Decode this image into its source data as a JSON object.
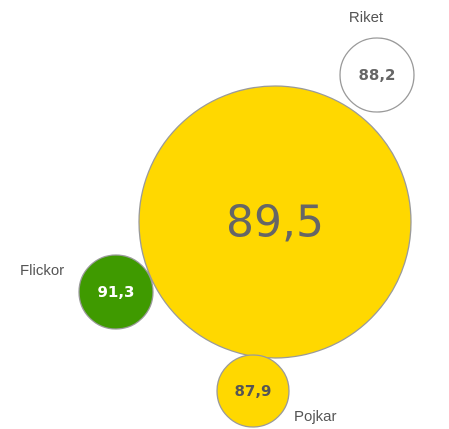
{
  "chart_data": {
    "type": "bubble",
    "title": "",
    "bubbles": [
      {
        "name": "",
        "value": "89,5",
        "fill": "#FFD800",
        "stroke": "#9a9a9a",
        "text_color": "#666666",
        "bold": false
      },
      {
        "name": "Riket",
        "value": "88,2",
        "fill": "#FFFFFF",
        "stroke": "#9a9a9a",
        "text_color": "#666666",
        "bold": true
      },
      {
        "name": "Flickor",
        "value": "91,3",
        "fill": "#3F9A00",
        "stroke": "#9a9a9a",
        "text_color": "#FFFFFF",
        "bold": true
      },
      {
        "name": "Pojkar",
        "value": "87,9",
        "fill": "#FFD800",
        "stroke": "#9a9a9a",
        "text_color": "#555555",
        "bold": true
      }
    ]
  }
}
